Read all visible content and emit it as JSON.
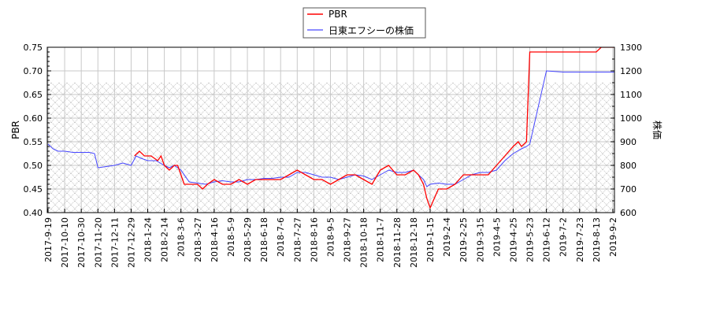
{
  "chart_data": {
    "type": "line",
    "title": "",
    "legend": {
      "position": "top-center",
      "entries": [
        {
          "name": "PBR",
          "color": "#ff0000"
        },
        {
          "name": "日東エフシーの株価",
          "color": "#4444ff"
        }
      ]
    },
    "xlabel": "",
    "ylabel_left": "PBR",
    "ylabel_right": "株価",
    "ylim_left": [
      0.4,
      0.75
    ],
    "ylim_right": [
      600,
      1300
    ],
    "yticks_left": [
      "0.40",
      "0.45",
      "0.50",
      "0.55",
      "0.60",
      "0.65",
      "0.70",
      "0.75"
    ],
    "yticks_right": [
      "600",
      "700",
      "800",
      "900",
      "1000",
      "1100",
      "1200",
      "1300"
    ],
    "xticks": [
      "2017-9-19",
      "2017-10-10",
      "2017-10-30",
      "2017-11-20",
      "2017-12-11",
      "2017-12-29",
      "2018-1-24",
      "2018-2-14",
      "2018-3-6",
      "2018-3-27",
      "2018-4-16",
      "2018-5-9",
      "2018-5-29",
      "2018-6-18",
      "2018-7-6",
      "2018-7-27",
      "2018-8-16",
      "2018-9-5",
      "2018-9-27",
      "2018-10-18",
      "2018-11-7",
      "2018-11-28",
      "2018-12-18",
      "2019-1-15",
      "2019-2-4",
      "2019-2-25",
      "2019-3-15",
      "2019-4-5",
      "2019-4-25",
      "2019-5-23",
      "2019-6-12",
      "2019-7-2",
      "2019-7-23",
      "2019-8-13",
      "2019-9-2"
    ],
    "grid": true,
    "hatched_region": {
      "from_value_left": 0.4,
      "to_value_left": 0.675
    },
    "series": [
      {
        "name": "PBR",
        "axis": "left",
        "color": "#ff0000",
        "x_index": [
          5.2,
          5.5,
          5.8,
          6.2,
          6.6,
          6.8,
          7.0,
          7.3,
          7.6,
          7.8,
          8.2,
          8.6,
          9.0,
          9.3,
          9.6,
          10.0,
          10.5,
          11.0,
          11.5,
          12.0,
          12.5,
          13.0,
          13.5,
          14.0,
          14.5,
          15.0,
          15.5,
          16.0,
          16.5,
          17.0,
          17.5,
          18.0,
          18.5,
          19.0,
          19.5,
          20.0,
          20.5,
          21.0,
          21.5,
          22.0,
          22.3,
          22.6,
          22.8,
          23.0,
          23.5,
          24.0,
          24.5,
          25.0,
          25.5,
          26.0,
          26.5,
          27.0,
          27.5,
          28.0,
          28.3,
          28.5,
          28.8,
          29.0,
          30,
          31,
          32,
          33,
          33.3,
          34,
          34.9
        ],
        "values": [
          0.52,
          0.53,
          0.52,
          0.52,
          0.51,
          0.52,
          0.5,
          0.49,
          0.5,
          0.5,
          0.46,
          0.46,
          0.46,
          0.45,
          0.46,
          0.47,
          0.46,
          0.46,
          0.47,
          0.46,
          0.47,
          0.47,
          0.47,
          0.47,
          0.48,
          0.49,
          0.48,
          0.47,
          0.47,
          0.46,
          0.47,
          0.48,
          0.48,
          0.47,
          0.46,
          0.49,
          0.5,
          0.48,
          0.48,
          0.49,
          0.48,
          0.46,
          0.43,
          0.41,
          0.45,
          0.45,
          0.46,
          0.48,
          0.48,
          0.48,
          0.48,
          0.5,
          0.52,
          0.54,
          0.55,
          0.54,
          0.55,
          0.74,
          0.74,
          0.74,
          0.74,
          0.74,
          0.75,
          0.75,
          0.75
        ]
      },
      {
        "name": "日東エフシーの株価",
        "axis": "right",
        "color": "#4444ff",
        "x_index": [
          0,
          0.3,
          0.6,
          1.0,
          1.5,
          2.0,
          2.5,
          2.8,
          3.0,
          3.5,
          4.0,
          4.5,
          5.0,
          5.3,
          5.6,
          6.0,
          6.5,
          7.0,
          7.3,
          7.6,
          8.0,
          8.5,
          9.0,
          9.5,
          10.0,
          10.5,
          11.0,
          11.5,
          12.0,
          12.5,
          13.0,
          13.5,
          14.0,
          14.5,
          15.0,
          15.5,
          16.0,
          16.5,
          17.0,
          17.5,
          18.0,
          18.5,
          19.0,
          19.5,
          20.0,
          20.5,
          21.0,
          21.5,
          22.0,
          22.3,
          22.6,
          22.8,
          23.0,
          23.5,
          24.0,
          24.5,
          25.0,
          25.5,
          26.0,
          26.5,
          27.0,
          27.5,
          28.0,
          28.5,
          28.8,
          29.0,
          30,
          31,
          32,
          33,
          34,
          34.9
        ],
        "values": [
          890,
          870,
          860,
          860,
          855,
          855,
          855,
          850,
          790,
          795,
          800,
          810,
          800,
          840,
          830,
          820,
          820,
          800,
          790,
          800,
          780,
          730,
          725,
          720,
          730,
          735,
          730,
          730,
          740,
          740,
          745,
          745,
          750,
          750,
          770,
          770,
          760,
          750,
          750,
          740,
          750,
          760,
          755,
          740,
          760,
          780,
          770,
          770,
          780,
          760,
          740,
          710,
          720,
          725,
          720,
          720,
          740,
          760,
          770,
          770,
          780,
          820,
          850,
          870,
          880,
          890,
          1200,
          1195,
          1195,
          1195,
          1195,
          1195
        ]
      }
    ]
  }
}
